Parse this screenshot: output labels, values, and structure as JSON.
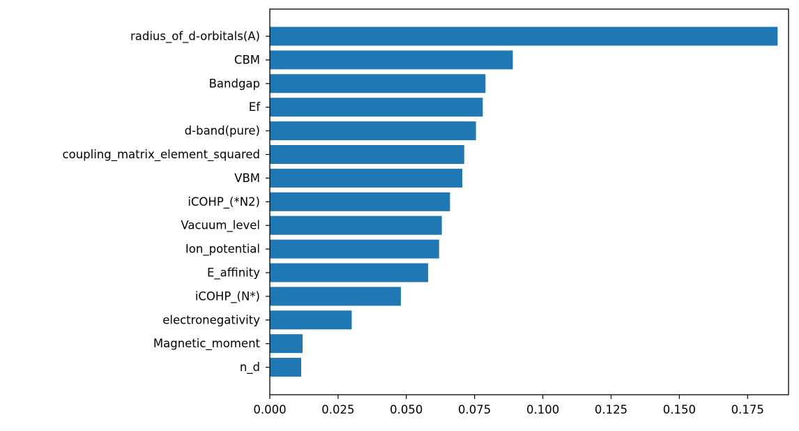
{
  "chart_data": {
    "type": "bar",
    "orientation": "horizontal",
    "title": "",
    "xlabel": "",
    "ylabel": "",
    "xlim": [
      0,
      0.19
    ],
    "xticks": [
      0.0,
      0.025,
      0.05,
      0.075,
      0.1,
      0.125,
      0.15,
      0.175
    ],
    "xtick_labels": [
      "0.000",
      "0.025",
      "0.050",
      "0.075",
      "0.100",
      "0.125",
      "0.150",
      "0.175"
    ],
    "grid": false,
    "legend": "none",
    "bar_color": "#1f77b4",
    "categories": [
      "radius_of_d-orbitals(A)",
      "CBM",
      "Bandgap",
      "Ef",
      "d-band(pure)",
      "coupling_matrix_element_squared",
      "VBM",
      "iCOHP_(*N2)",
      "Vacuum_level",
      "Ion_potential",
      "E_affinity",
      "iCOHP_(N*)",
      "electronegativity",
      "Magnetic_moment",
      "n_d"
    ],
    "values": [
      0.186,
      0.089,
      0.079,
      0.078,
      0.0755,
      0.0712,
      0.0705,
      0.066,
      0.063,
      0.062,
      0.058,
      0.048,
      0.03,
      0.012,
      0.0115
    ]
  }
}
